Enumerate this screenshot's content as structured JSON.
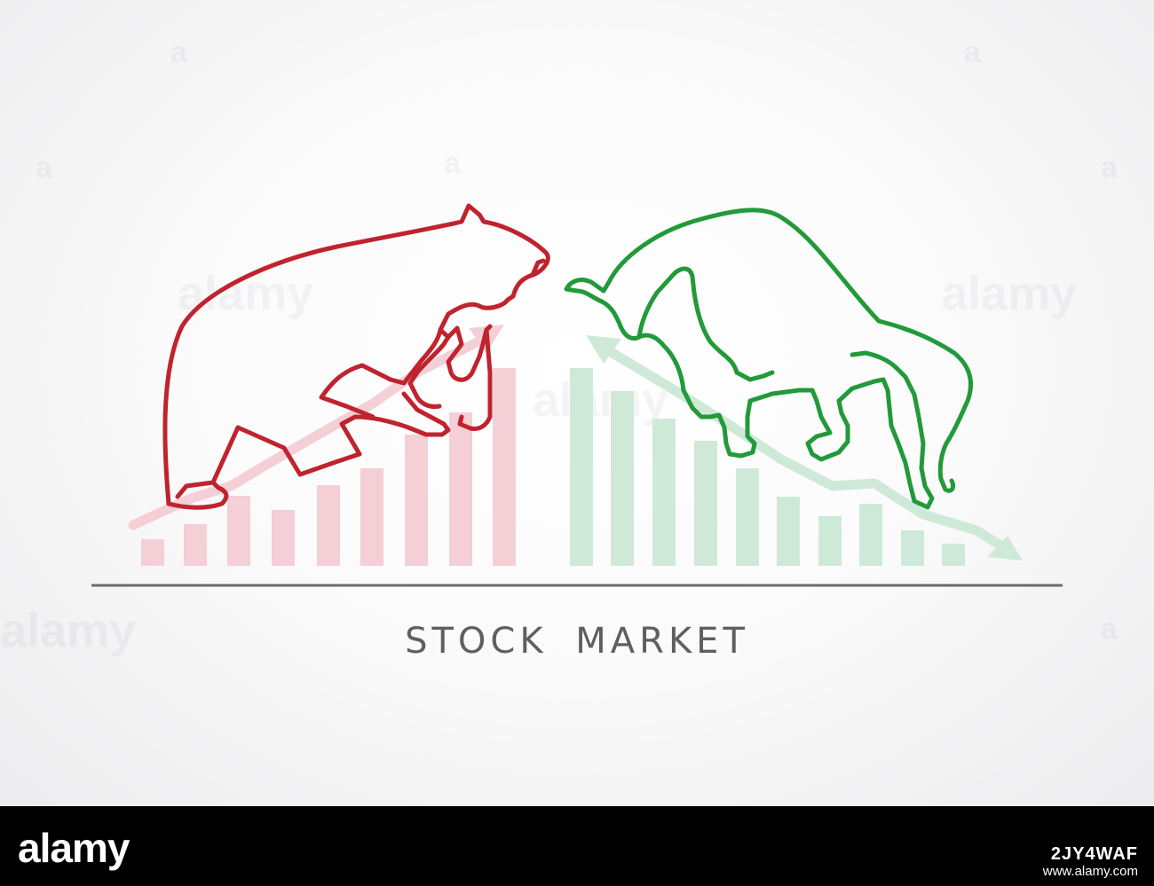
{
  "caption": "STOCK MARKET",
  "colors": {
    "bear": "#c0232e",
    "bull": "#229a3a",
    "bear_bars": "#f4d0d6",
    "bull_bars": "#cfe9d8",
    "baseline": "#6a6a6a",
    "caption": "#5f5f5f"
  },
  "icons": [
    "bear-outline",
    "bull-outline",
    "up-arrow",
    "down-arrow"
  ],
  "watermark": {
    "word": "alamy",
    "letter": "a"
  },
  "footer": {
    "logo": "alamy",
    "image_id": "2JY4WAF",
    "url": "www.alamy.com"
  }
}
